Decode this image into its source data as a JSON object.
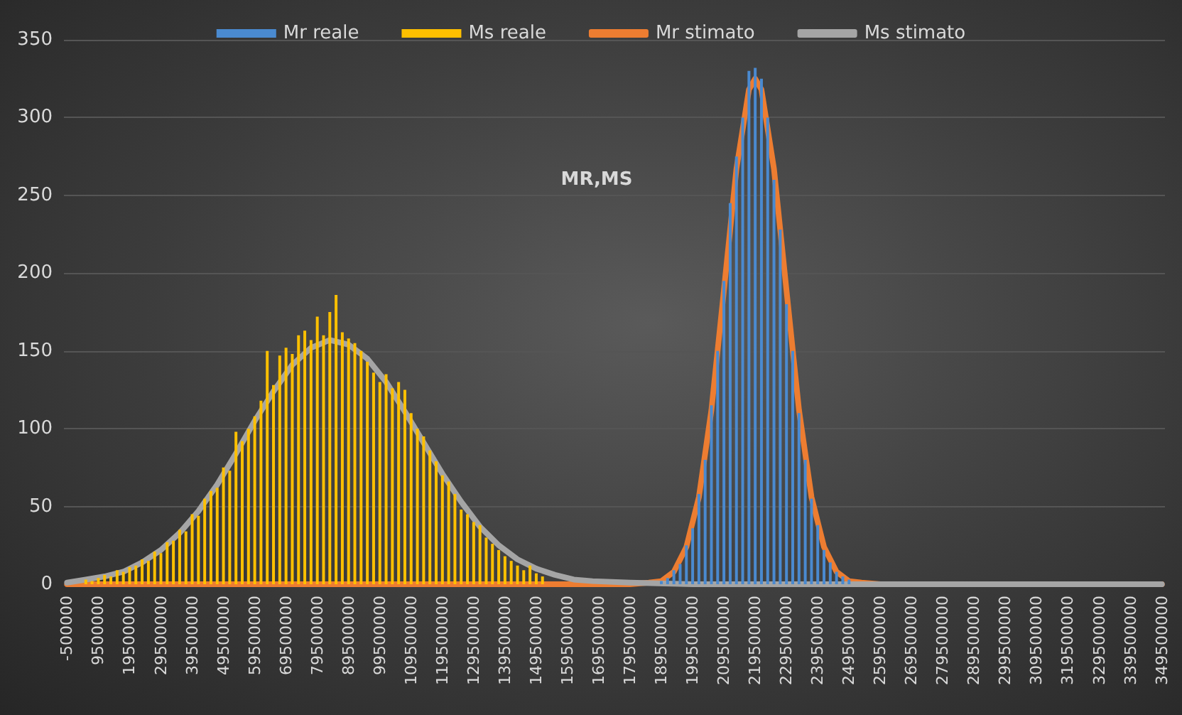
{
  "chart_data": {
    "type": "bar",
    "title": "MR,MS",
    "legend": "top",
    "grid": "y",
    "ylim": [
      0,
      350
    ],
    "yticks": [
      0,
      50,
      100,
      150,
      200,
      250,
      300,
      350
    ],
    "xlim": [
      -1500000,
      350500000
    ],
    "xticks": [
      -500000,
      9500000,
      19500000,
      29500000,
      39500000,
      49500000,
      59500000,
      69500000,
      79500000,
      89500000,
      99500000,
      109500000,
      119500000,
      129500000,
      139500000,
      149500000,
      159500000,
      169500000,
      179500000,
      189500000,
      199500000,
      209500000,
      219500000,
      229500000,
      239500000,
      249500000,
      259500000,
      269500000,
      279500000,
      289500000,
      299500000,
      309500000,
      319500000,
      329500000,
      339500000,
      349500000
    ],
    "series": [
      {
        "name": "Mr reale",
        "color": "#4a8ad0",
        "x": [
          189500000,
          191500000,
          193500000,
          195500000,
          197500000,
          199500000,
          201500000,
          203500000,
          205500000,
          207500000,
          209500000,
          211500000,
          213500000,
          215500000,
          217500000,
          219500000,
          221500000,
          223500000,
          225500000,
          227500000,
          229500000,
          231500000,
          233500000,
          235500000,
          237500000,
          239500000,
          241500000,
          243500000,
          245500000,
          247500000,
          249500000
        ],
        "values": [
          2,
          4,
          9,
          13,
          25,
          36,
          58,
          80,
          115,
          150,
          195,
          245,
          275,
          300,
          330,
          332,
          325,
          300,
          260,
          228,
          180,
          150,
          110,
          80,
          55,
          38,
          22,
          14,
          8,
          5,
          3
        ]
      },
      {
        "name": "Ms reale",
        "color": "#ffc000",
        "x": [
          5500000,
          7500000,
          9500000,
          11500000,
          13500000,
          15500000,
          17500000,
          19500000,
          21500000,
          23500000,
          25500000,
          27500000,
          29500000,
          31500000,
          33500000,
          35500000,
          37500000,
          39500000,
          41500000,
          43500000,
          45500000,
          47500000,
          49500000,
          51500000,
          53500000,
          55500000,
          57500000,
          59500000,
          61500000,
          63500000,
          65500000,
          67500000,
          69500000,
          71500000,
          73500000,
          75500000,
          77500000,
          79500000,
          81500000,
          83500000,
          85500000,
          87500000,
          89500000,
          91500000,
          93500000,
          95500000,
          97500000,
          99500000,
          101500000,
          103500000,
          105500000,
          107500000,
          109500000,
          111500000,
          113500000,
          115500000,
          117500000,
          119500000,
          121500000,
          123500000,
          125500000,
          127500000,
          129500000,
          131500000,
          133500000,
          135500000,
          137500000,
          139500000,
          141500000,
          143500000,
          145500000,
          147500000,
          149500000,
          151500000
        ],
        "values": [
          3,
          2,
          4,
          6,
          5,
          9,
          8,
          11,
          12,
          16,
          15,
          21,
          20,
          27,
          28,
          35,
          34,
          45,
          44,
          55,
          60,
          62,
          75,
          73,
          98,
          92,
          100,
          108,
          118,
          150,
          128,
          147,
          152,
          148,
          160,
          163,
          157,
          172,
          160,
          175,
          186,
          162,
          158,
          155,
          150,
          143,
          136,
          130,
          135,
          126,
          130,
          125,
          110,
          100,
          95,
          86,
          79,
          70,
          66,
          58,
          48,
          45,
          40,
          38,
          30,
          26,
          22,
          18,
          15,
          12,
          9,
          12,
          7,
          5
        ]
      },
      {
        "name": "Mr stimato",
        "type": "line",
        "color": "#ed7d31",
        "x": [
          -500000,
          159500000,
          179500000,
          185500000,
          189500000,
          193500000,
          197500000,
          201500000,
          205500000,
          209500000,
          213500000,
          217500000,
          219500000,
          221500000,
          225500000,
          229500000,
          233500000,
          237500000,
          241500000,
          245500000,
          249500000,
          253500000,
          259500000,
          349500000
        ],
        "values": [
          0,
          0,
          0,
          1,
          2,
          8,
          24,
          56,
          112,
          189,
          267,
          318,
          325,
          318,
          267,
          189,
          112,
          56,
          24,
          8,
          2,
          1,
          0,
          0
        ]
      },
      {
        "name": "Ms stimato",
        "type": "line",
        "color": "#a5a5a5",
        "x": [
          -500000,
          5500000,
          11500000,
          17500000,
          23500000,
          29500000,
          35500000,
          41500000,
          47500000,
          53500000,
          59500000,
          65500000,
          71500000,
          77500000,
          83500000,
          89500000,
          95500000,
          101500000,
          107500000,
          113500000,
          119500000,
          125500000,
          131500000,
          137500000,
          143500000,
          149500000,
          155500000,
          161500000,
          167500000,
          179500000,
          199500000,
          349500000
        ],
        "values": [
          1,
          3,
          5,
          8,
          14,
          22,
          33,
          47,
          64,
          84,
          105,
          124,
          141,
          152,
          157,
          154,
          145,
          130,
          111,
          91,
          71,
          53,
          37,
          25,
          16,
          10,
          6,
          3,
          2,
          1,
          0,
          0
        ]
      }
    ]
  }
}
